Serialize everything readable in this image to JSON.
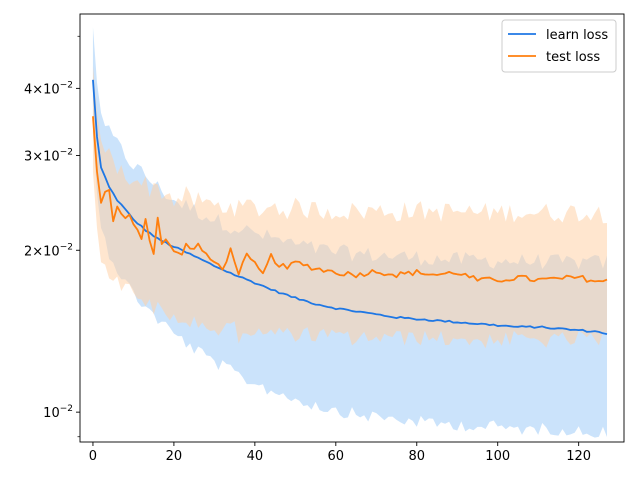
{
  "chart_data": {
    "type": "line",
    "title": "",
    "xlabel": "",
    "ylabel": "",
    "yscale": "log",
    "xlim": [
      -3.2,
      131.2
    ],
    "ylim": [
      0.0088,
      0.055
    ],
    "grid": false,
    "legend_position": "top-right",
    "x_ticks": [
      0,
      20,
      40,
      60,
      80,
      100,
      120
    ],
    "x_tick_labels": [
      "0",
      "20",
      "40",
      "60",
      "80",
      "100",
      "120"
    ],
    "y_major_ticks": [
      0.01,
      0.02,
      0.03,
      0.04
    ],
    "y_tick_labels": [
      {
        "mantissa": "",
        "base": "10",
        "exp": "−2"
      },
      {
        "mantissa": "2×",
        "base": "10",
        "exp": "−2"
      },
      {
        "mantissa": "3×",
        "base": "10",
        "exp": "−2"
      },
      {
        "mantissa": "4×",
        "base": "10",
        "exp": "−2"
      }
    ],
    "y_minor_ticks": [
      0.009,
      0.05
    ],
    "series": [
      {
        "name": "learn loss",
        "color": "#1f77e4",
        "band_color": "#a8d0f8",
        "key_x": [
          0,
          1,
          2,
          4,
          6,
          8,
          10,
          13,
          16,
          20,
          25,
          30,
          35,
          40,
          45,
          50,
          55,
          60,
          65,
          70,
          75,
          80,
          85,
          90,
          95,
          100,
          105,
          110,
          115,
          120,
          125,
          127
        ],
        "key_y": [
          0.0415,
          0.0325,
          0.0285,
          0.0262,
          0.0248,
          0.0238,
          0.0228,
          0.0218,
          0.021,
          0.0203,
          0.0195,
          0.0187,
          0.018,
          0.0174,
          0.0168,
          0.0163,
          0.0159,
          0.0156,
          0.0154,
          0.0152,
          0.015,
          0.0149,
          0.0148,
          0.0147,
          0.0146,
          0.0145,
          0.0144,
          0.0144,
          0.0143,
          0.0142,
          0.0141,
          0.014
        ],
        "key_upper": [
          0.052,
          0.041,
          0.036,
          0.033,
          0.0315,
          0.03,
          0.0288,
          0.0275,
          0.0262,
          0.0248,
          0.0238,
          0.0228,
          0.0221,
          0.0215,
          0.021,
          0.0205,
          0.0201,
          0.0199,
          0.0197,
          0.0196,
          0.0195,
          0.0194,
          0.0193,
          0.0192,
          0.0192,
          0.0191,
          0.0191,
          0.0191,
          0.019,
          0.019,
          0.019,
          0.019
        ],
        "key_lower": [
          0.033,
          0.0255,
          0.022,
          0.0198,
          0.0185,
          0.0175,
          0.0166,
          0.0157,
          0.0149,
          0.014,
          0.0131,
          0.0124,
          0.0118,
          0.0113,
          0.0109,
          0.0106,
          0.0103,
          0.0101,
          0.0099,
          0.0098,
          0.0097,
          0.0096,
          0.0095,
          0.0095,
          0.0094,
          0.0094,
          0.0093,
          0.0093,
          0.0093,
          0.0092,
          0.0092,
          0.0092
        ]
      },
      {
        "name": "test loss",
        "color": "#ff7f0e",
        "band_color": "#ffd1a8",
        "key_x": [
          0,
          1,
          2,
          3,
          4,
          5,
          6,
          7,
          8,
          9,
          10,
          12,
          13,
          14,
          15,
          16,
          17,
          18,
          20,
          22,
          23,
          24,
          26,
          28,
          30,
          32,
          34,
          36,
          38,
          40,
          42,
          44,
          46,
          48,
          50,
          55,
          60,
          65,
          70,
          75,
          80,
          85,
          90,
          95,
          100,
          105,
          110,
          115,
          120,
          125,
          127
        ],
        "key_y": [
          0.0355,
          0.028,
          0.0245,
          0.0255,
          0.026,
          0.0225,
          0.024,
          0.0232,
          0.0228,
          0.0235,
          0.0225,
          0.0212,
          0.0228,
          0.021,
          0.0198,
          0.023,
          0.0205,
          0.0208,
          0.02,
          0.0195,
          0.0208,
          0.02,
          0.0205,
          0.0195,
          0.019,
          0.0185,
          0.02,
          0.0182,
          0.0195,
          0.0188,
          0.018,
          0.0195,
          0.0188,
          0.0185,
          0.019,
          0.0185,
          0.0182,
          0.018,
          0.0183,
          0.018,
          0.0182,
          0.018,
          0.0182,
          0.0176,
          0.0176,
          0.0178,
          0.0176,
          0.0177,
          0.0178,
          0.0175,
          0.0175
        ],
        "key_upper": [
          0.044,
          0.036,
          0.032,
          0.031,
          0.03,
          0.029,
          0.0285,
          0.028,
          0.0278,
          0.0275,
          0.0272,
          0.0268,
          0.0265,
          0.0262,
          0.026,
          0.0262,
          0.0258,
          0.0255,
          0.025,
          0.0248,
          0.0252,
          0.0248,
          0.0247,
          0.0245,
          0.0242,
          0.024,
          0.0245,
          0.0238,
          0.0242,
          0.024,
          0.0238,
          0.0242,
          0.024,
          0.0238,
          0.024,
          0.0238,
          0.0237,
          0.0236,
          0.0237,
          0.0236,
          0.0237,
          0.0236,
          0.0236,
          0.0235,
          0.0235,
          0.0236,
          0.0235,
          0.0235,
          0.0236,
          0.0235,
          0.0235
        ],
        "key_lower": [
          0.028,
          0.022,
          0.019,
          0.0185,
          0.0182,
          0.0178,
          0.0175,
          0.0172,
          0.017,
          0.0168,
          0.0165,
          0.016,
          0.0162,
          0.0157,
          0.0155,
          0.0162,
          0.0152,
          0.0151,
          0.0148,
          0.0146,
          0.0152,
          0.0147,
          0.0148,
          0.0145,
          0.0142,
          0.014,
          0.0146,
          0.0139,
          0.0143,
          0.0141,
          0.0138,
          0.0142,
          0.014,
          0.0139,
          0.014,
          0.0139,
          0.0138,
          0.0137,
          0.0138,
          0.0137,
          0.0138,
          0.0137,
          0.0137,
          0.0136,
          0.0136,
          0.0137,
          0.0136,
          0.0136,
          0.0137,
          0.0136,
          0.0136
        ]
      }
    ]
  }
}
